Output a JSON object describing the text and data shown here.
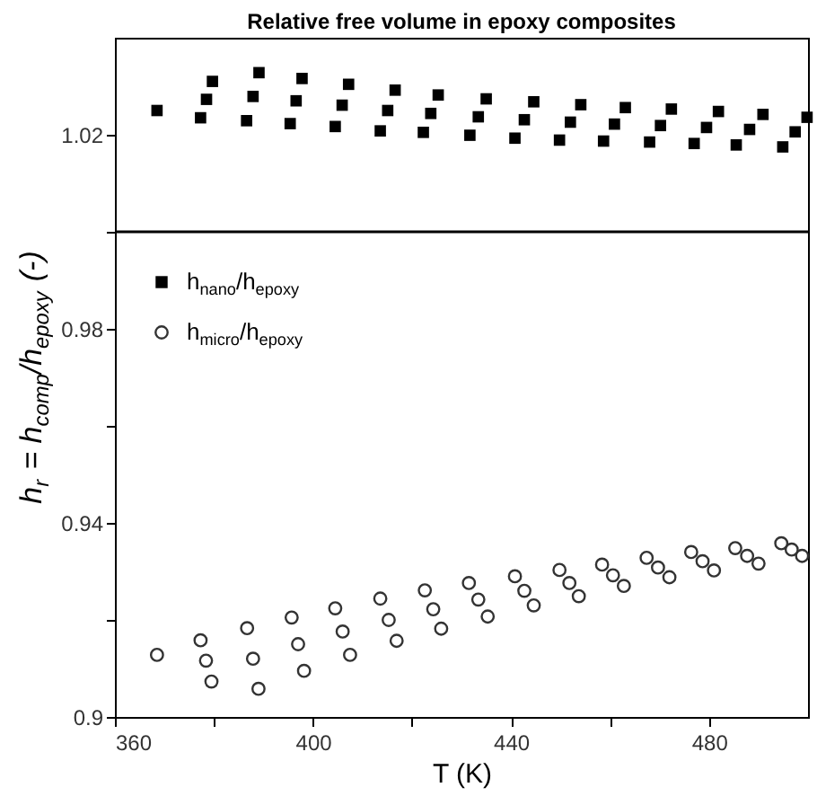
{
  "chart_data": {
    "type": "scatter",
    "title": "Relative free volume in epoxy composites",
    "xlabel": "T (K)",
    "ylabel": "h$_{r}$ = h$_{comp}$/h$_{epoxy}$ (-)",
    "xlim": [
      360,
      500
    ],
    "ylim": [
      0.9,
      1.04
    ],
    "xticks": [
      360,
      {
        "value": 380,
        "label": null
      },
      400,
      {
        "value": 420,
        "label": null
      },
      440,
      {
        "value": 460,
        "label": null
      },
      480
    ],
    "yticks": [
      0.9,
      {
        "value": 0.92,
        "label": null
      },
      0.94,
      {
        "value": 0.96,
        "label": null
      },
      0.98,
      {
        "value": 1.0,
        "label": null
      },
      1.02
    ],
    "grid": false,
    "legend": "top left",
    "ref_lines": [
      {
        "axis": "y",
        "value": 1.0,
        "color": "#000000",
        "line_style": "solid"
      }
    ],
    "series": [
      {
        "name": "h$_{nano}$/h$_{epoxy}$",
        "color": "#000000",
        "marker": "square",
        "x": [
          368.5,
          379.7,
          378.5,
          377.3,
          389.1,
          387.9,
          386.6,
          397.8,
          396.6,
          395.4,
          407.2,
          405.9,
          404.5,
          416.6,
          415.1,
          413.6,
          425.3,
          423.8,
          422.3,
          435.0,
          433.4,
          431.7,
          444.6,
          442.7,
          440.8,
          454.1,
          452.0,
          449.8,
          463.1,
          460.9,
          458.7,
          472.4,
          470.2,
          468.0,
          481.9,
          479.5,
          477.0,
          490.9,
          488.2,
          485.5,
          499.8,
          497.4,
          494.9
        ],
        "values": [
          1.025,
          1.031,
          1.0273,
          1.0235,
          1.0328,
          1.0279,
          1.0229,
          1.0316,
          1.027,
          1.0223,
          1.0304,
          1.0261,
          1.0217,
          1.0292,
          1.025,
          1.0208,
          1.0282,
          1.0244,
          1.0205,
          1.0274,
          1.0237,
          1.0199,
          1.0268,
          1.0231,
          1.0193,
          1.0262,
          1.0226,
          1.0189,
          1.0256,
          1.0222,
          1.0187,
          1.0253,
          1.0219,
          1.0185,
          1.0248,
          1.0215,
          1.0182,
          1.0242,
          1.0211,
          1.0179,
          1.0236,
          1.0206,
          1.0175
        ]
      },
      {
        "name": "h$_{micro}$/h$_{epoxy}$",
        "color": "#333333",
        "marker": "circle",
        "x": [
          368.5,
          377.3,
          378.4,
          379.5,
          386.7,
          387.9,
          389.0,
          395.7,
          397.0,
          398.2,
          404.5,
          406.0,
          407.5,
          413.6,
          415.3,
          416.9,
          422.6,
          424.3,
          425.9,
          431.5,
          433.4,
          435.3,
          440.8,
          442.7,
          444.6,
          449.8,
          451.8,
          453.7,
          458.4,
          460.6,
          462.8,
          467.4,
          469.7,
          472.0,
          476.4,
          478.7,
          481.0,
          485.3,
          487.7,
          490.0,
          494.6,
          496.7,
          498.8
        ],
        "values": [
          0.9128,
          0.9158,
          0.9116,
          0.9073,
          0.9183,
          0.912,
          0.9058,
          0.9205,
          0.915,
          0.9095,
          0.9224,
          0.9176,
          0.9128,
          0.9244,
          0.92,
          0.9157,
          0.9261,
          0.9222,
          0.9182,
          0.9276,
          0.9242,
          0.9207,
          0.929,
          0.926,
          0.923,
          0.9303,
          0.9276,
          0.9249,
          0.9314,
          0.9292,
          0.927,
          0.9328,
          0.9308,
          0.9288,
          0.934,
          0.9321,
          0.9302,
          0.9348,
          0.9332,
          0.9316,
          0.9358,
          0.9345,
          0.9332
        ]
      }
    ]
  }
}
